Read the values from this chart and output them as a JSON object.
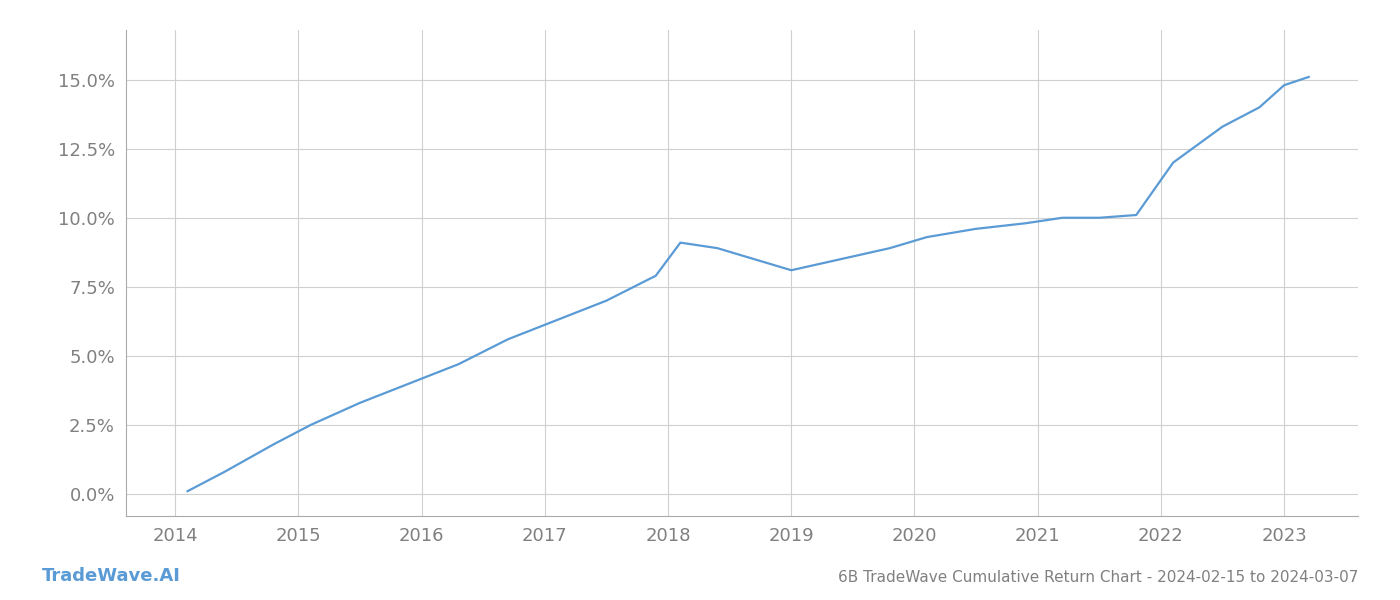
{
  "title": "6B TradeWave Cumulative Return Chart - 2024-02-15 to 2024-03-07",
  "watermark": "TradeWave.AI",
  "x_values": [
    2014.1,
    2014.4,
    2014.8,
    2015.1,
    2015.5,
    2015.9,
    2016.3,
    2016.7,
    2017.1,
    2017.5,
    2017.9,
    2018.1,
    2018.4,
    2018.7,
    2019.0,
    2019.4,
    2019.8,
    2020.1,
    2020.5,
    2020.9,
    2021.2,
    2021.5,
    2021.8,
    2022.1,
    2022.5,
    2022.8,
    2023.0,
    2023.2
  ],
  "y_values": [
    0.001,
    0.008,
    0.018,
    0.025,
    0.033,
    0.04,
    0.047,
    0.056,
    0.063,
    0.07,
    0.079,
    0.091,
    0.089,
    0.085,
    0.081,
    0.085,
    0.089,
    0.093,
    0.096,
    0.098,
    0.1,
    0.1,
    0.101,
    0.12,
    0.133,
    0.14,
    0.148,
    0.151
  ],
  "line_color": "#5b9bd5",
  "line_width": 1.6,
  "background_color": "#ffffff",
  "grid_color": "#d0d0d0",
  "tick_color": "#808080",
  "title_color": "#808080",
  "watermark_color": "#5b9bd5",
  "xlim": [
    2013.6,
    2023.6
  ],
  "ylim": [
    -0.008,
    0.168
  ],
  "yticks": [
    0.0,
    0.025,
    0.05,
    0.075,
    0.1,
    0.125,
    0.15
  ],
  "xticks": [
    2014,
    2015,
    2016,
    2017,
    2018,
    2019,
    2020,
    2021,
    2022,
    2023
  ],
  "title_fontsize": 11,
  "tick_fontsize": 13,
  "watermark_fontsize": 13
}
